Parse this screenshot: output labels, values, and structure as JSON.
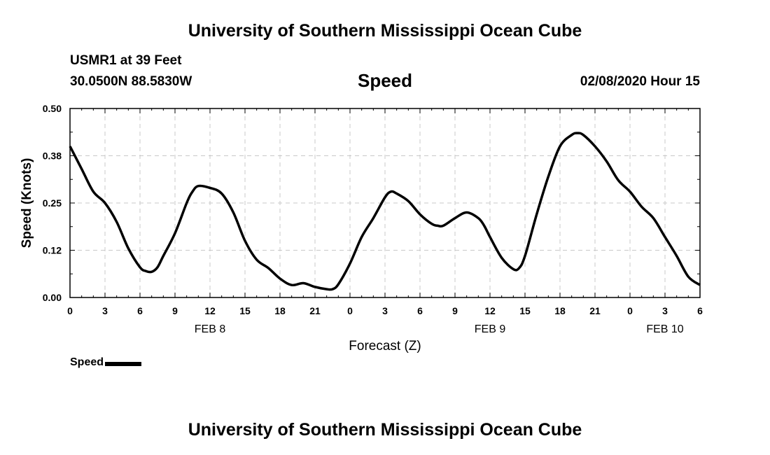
{
  "header": {
    "title": "University of Southern Mississippi Ocean Cube",
    "station": "USMR1 at 39 Feet",
    "coords": "30.0500N 88.5830W",
    "chart_name": "Speed",
    "datetime": "02/08/2020 Hour 15"
  },
  "footer": {
    "title": "University of Southern Mississippi Ocean Cube"
  },
  "legend": {
    "label": "Speed"
  },
  "chart_data": {
    "type": "line",
    "title": "Speed",
    "xlabel": "Forecast (Z)",
    "ylabel": "Speed (Knots)",
    "xlim": [
      0,
      54
    ],
    "ylim": [
      0,
      0.5
    ],
    "y_ticks": [
      "0.00",
      "0.12",
      "0.25",
      "0.38",
      "0.50"
    ],
    "x_ticks": [
      "0",
      "3",
      "6",
      "9",
      "12",
      "15",
      "18",
      "21",
      "0",
      "3",
      "6",
      "9",
      "12",
      "15",
      "18",
      "21",
      "0",
      "3",
      "6"
    ],
    "day_labels": [
      {
        "label": "FEB 8",
        "hour": 12
      },
      {
        "label": "FEB 9",
        "hour": 36
      },
      {
        "label": "FEB 10",
        "hour": 51
      }
    ],
    "grid": true,
    "series": [
      {
        "name": "Speed",
        "color": "#000000",
        "x": [
          0,
          1,
          2,
          3,
          4,
          5,
          6,
          6.5,
          7,
          7.5,
          8,
          9,
          10,
          10.5,
          11,
          12,
          13,
          14,
          15,
          16,
          17,
          18,
          19,
          20,
          21,
          22,
          22.5,
          23,
          24,
          25,
          26,
          27,
          27.5,
          28,
          29,
          30,
          31,
          31.5,
          32,
          33,
          34,
          35,
          35.5,
          36,
          37,
          38,
          38.5,
          39,
          40,
          41,
          42,
          43,
          43.5,
          44,
          45,
          46,
          47,
          48,
          49,
          50,
          51,
          52,
          53,
          54
        ],
        "y": [
          0.4,
          0.34,
          0.28,
          0.25,
          0.2,
          0.13,
          0.08,
          0.07,
          0.068,
          0.08,
          0.11,
          0.17,
          0.25,
          0.28,
          0.295,
          0.29,
          0.275,
          0.225,
          0.15,
          0.1,
          0.078,
          0.05,
          0.033,
          0.038,
          0.028,
          0.022,
          0.022,
          0.035,
          0.09,
          0.16,
          0.21,
          0.265,
          0.28,
          0.275,
          0.255,
          0.22,
          0.195,
          0.19,
          0.19,
          0.21,
          0.225,
          0.21,
          0.19,
          0.16,
          0.105,
          0.075,
          0.078,
          0.11,
          0.22,
          0.32,
          0.4,
          0.43,
          0.435,
          0.43,
          0.4,
          0.36,
          0.31,
          0.28,
          0.24,
          0.21,
          0.16,
          0.11,
          0.055,
          0.033
        ]
      }
    ]
  }
}
